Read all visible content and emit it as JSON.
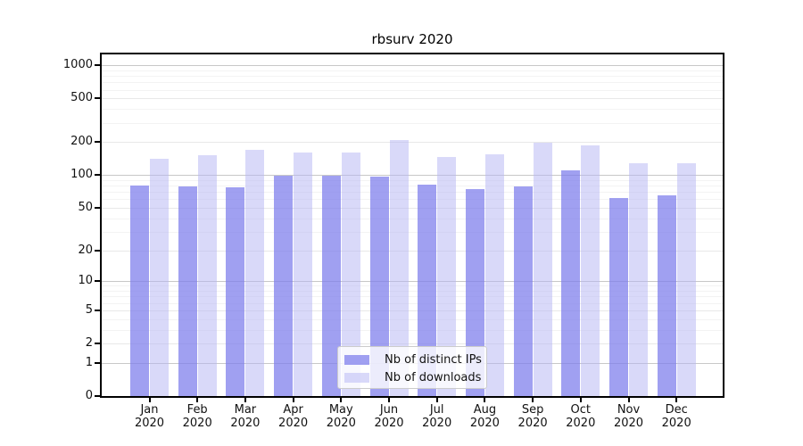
{
  "chart_data": {
    "type": "bar",
    "title": "rbsurv 2020",
    "categories": [
      "Jan",
      "Feb",
      "Mar",
      "Apr",
      "May",
      "Jun",
      "Jul",
      "Aug",
      "Sep",
      "Oct",
      "Nov",
      "Dec"
    ],
    "category_year": "2020",
    "series": [
      {
        "name": "Nb of distinct IPs",
        "slug": "distinct-ips",
        "color": "rgba(124,124,235,0.72)",
        "values": [
          80,
          78,
          77,
          98,
          98,
          96,
          82,
          75,
          79,
          110,
          62,
          65
        ]
      },
      {
        "name": "Nb of downloads",
        "slug": "downloads",
        "color": "rgba(180,180,243,0.5)",
        "values": [
          140,
          152,
          170,
          161,
          162,
          210,
          146,
          155,
          198,
          186,
          128,
          128
        ]
      }
    ],
    "y_axis": {
      "scale": "log10(1+v)",
      "tick_values": [
        0,
        1,
        2,
        5,
        10,
        20,
        50,
        100,
        200,
        500,
        1000
      ],
      "tick_labels": [
        "0",
        "1",
        "2",
        "5",
        "10",
        "20",
        "50",
        "100",
        "200",
        "500",
        "1000"
      ],
      "ylim": [
        0,
        1260
      ]
    },
    "grid": true,
    "legend_position": "inside-bottom-center"
  },
  "colors": {
    "decade_grid": "#c8c8c8",
    "labeled_grid": "#e8e8e8",
    "minor_grid": "#f3f3f3",
    "axis": "#000000",
    "text": "#111111",
    "legend_border": "#cccccc"
  }
}
